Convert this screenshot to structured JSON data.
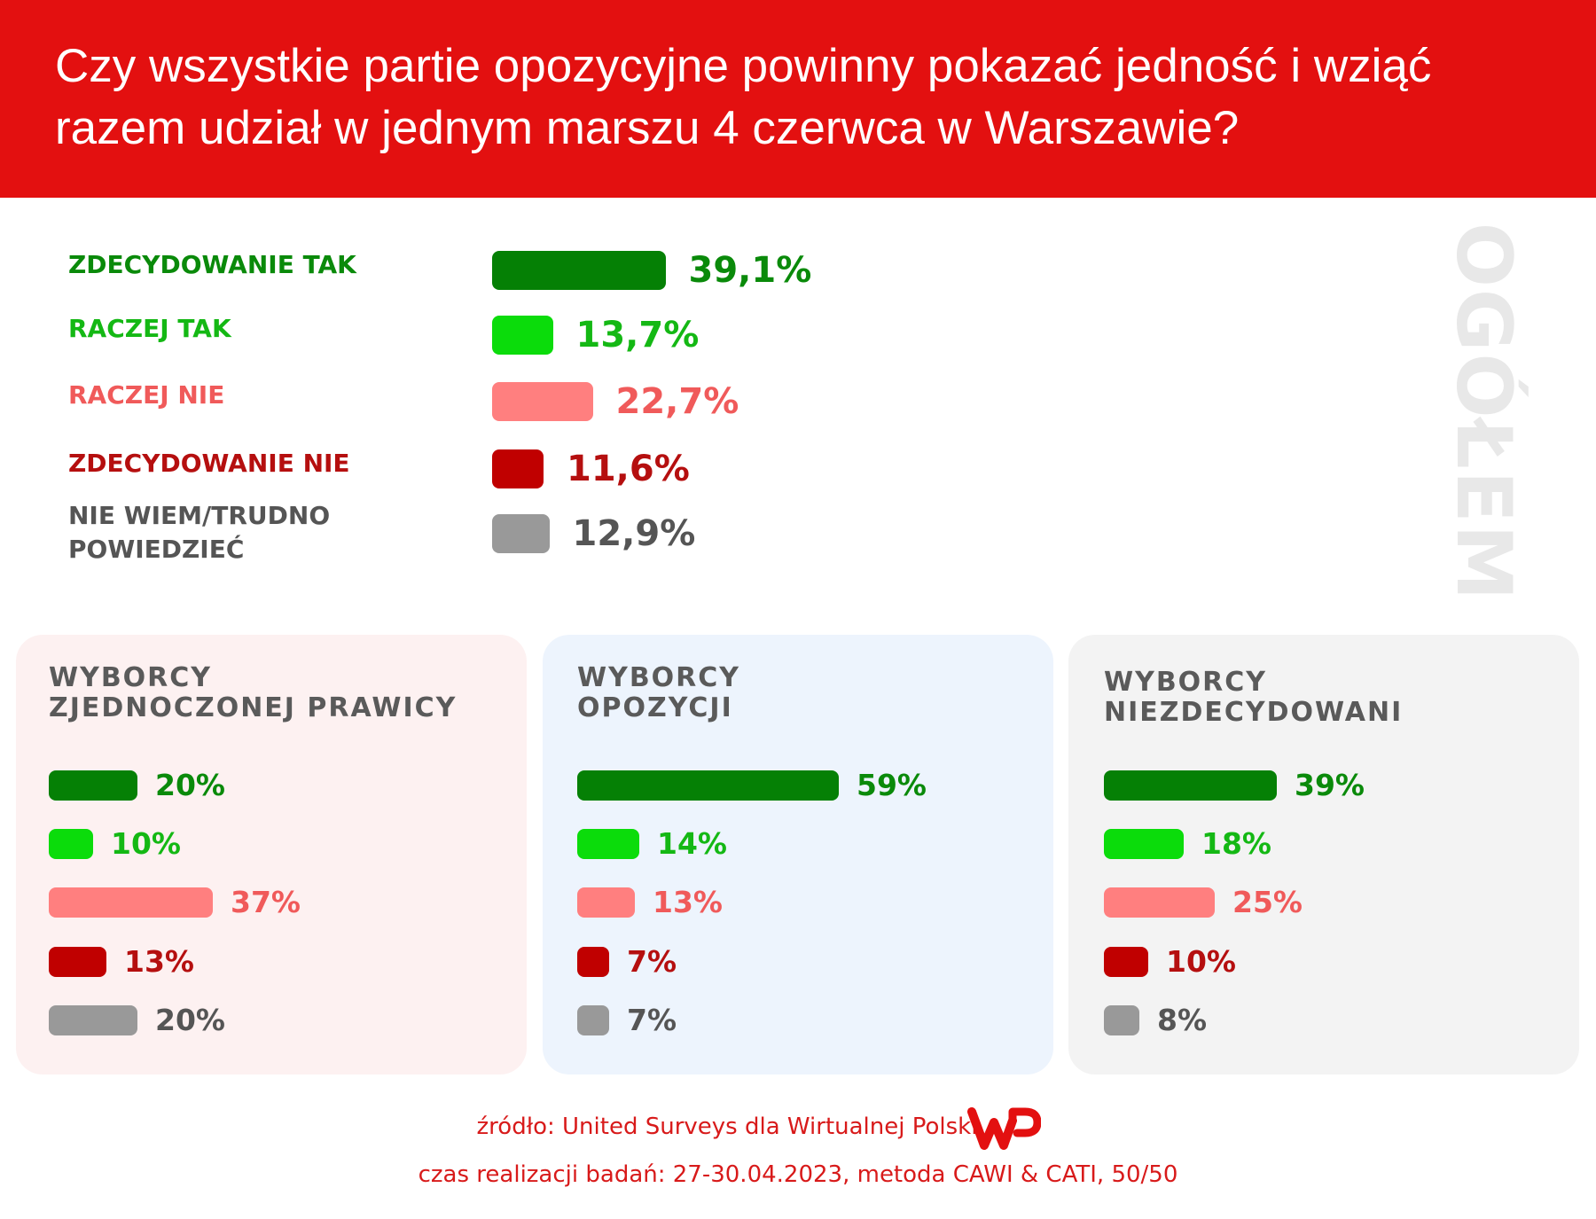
{
  "header": {
    "title": "Czy wszystkie partie opozycyjne powinny pokazać jedność i wziąć razem udział w jednym marszu 4 czerwca w Warszawie?"
  },
  "side_label": "OGÓŁEM",
  "colors": {
    "header_bg": "#e31010",
    "strongly_yes": "#058005",
    "rather_yes": "#0bdc0b",
    "rather_no": "#ff7f7f",
    "strongly_no": "#c00000",
    "dont_know": "#999999",
    "label_strongly_yes": "#0a8a0a",
    "label_rather_yes": "#14b814",
    "label_rather_no": "#f05a5a",
    "label_strongly_no": "#b50f0f",
    "label_dont_know": "#555555"
  },
  "chart_data": [
    {
      "type": "bar",
      "group": "OGÓŁEM",
      "categories": [
        "ZDECYDOWANIE TAK",
        "RACZEJ TAK",
        "RACZEJ NIE",
        "ZDECYDOWANIE NIE",
        "NIE WIEM/TRUDNO POWIEDZIEĆ"
      ],
      "category_lines": [
        [
          "ZDECYDOWANIE TAK"
        ],
        [
          "RACZEJ TAK"
        ],
        [
          "RACZEJ NIE"
        ],
        [
          "ZDECYDOWANIE NIE"
        ],
        [
          "NIE WIEM/TRUDNO",
          "POWIEDZIEĆ"
        ]
      ],
      "values": [
        39.1,
        13.7,
        22.7,
        11.6,
        12.9
      ],
      "labels": [
        "39,1%",
        "13,7%",
        "22,7%",
        "11,6%",
        "12,9%"
      ]
    },
    {
      "type": "bar",
      "title_lines": [
        "WYBORCY",
        "ZJEDNOCZONEJ PRAWICY"
      ],
      "categories": [
        "ZDECYDOWANIE TAK",
        "RACZEJ TAK",
        "RACZEJ NIE",
        "ZDECYDOWANIE NIE",
        "NIE WIEM/TRUDNO POWIEDZIEĆ"
      ],
      "values": [
        20,
        10,
        37,
        13,
        20
      ],
      "labels": [
        "20%",
        "10%",
        "37%",
        "13%",
        "20%"
      ]
    },
    {
      "type": "bar",
      "title_lines": [
        "WYBORCY",
        "OPOZYCJI"
      ],
      "categories": [
        "ZDECYDOWANIE TAK",
        "RACZEJ TAK",
        "RACZEJ NIE",
        "ZDECYDOWANIE NIE",
        "NIE WIEM/TRUDNO POWIEDZIEĆ"
      ],
      "values": [
        59,
        14,
        13,
        7,
        7
      ],
      "labels": [
        "59%",
        "14%",
        "13%",
        "7%",
        "7%"
      ]
    },
    {
      "type": "bar",
      "title_lines": [
        "WYBORCY",
        "NIEZDECYDOWANI"
      ],
      "categories": [
        "ZDECYDOWANIE TAK",
        "RACZEJ TAK",
        "RACZEJ NIE",
        "ZDECYDOWANIE NIE",
        "NIE WIEM/TRUDNO POWIEDZIEĆ"
      ],
      "values": [
        39,
        18,
        25,
        10,
        8
      ],
      "labels": [
        "39%",
        "18%",
        "25%",
        "10%",
        "8%"
      ]
    }
  ],
  "footer": {
    "source": "źródło: United Surveys dla Wirtualnej Polski",
    "method": "czas realizacji badań: 27-30.04.2023, metoda CAWI & CATI, 50/50",
    "logo_text": "WP"
  }
}
